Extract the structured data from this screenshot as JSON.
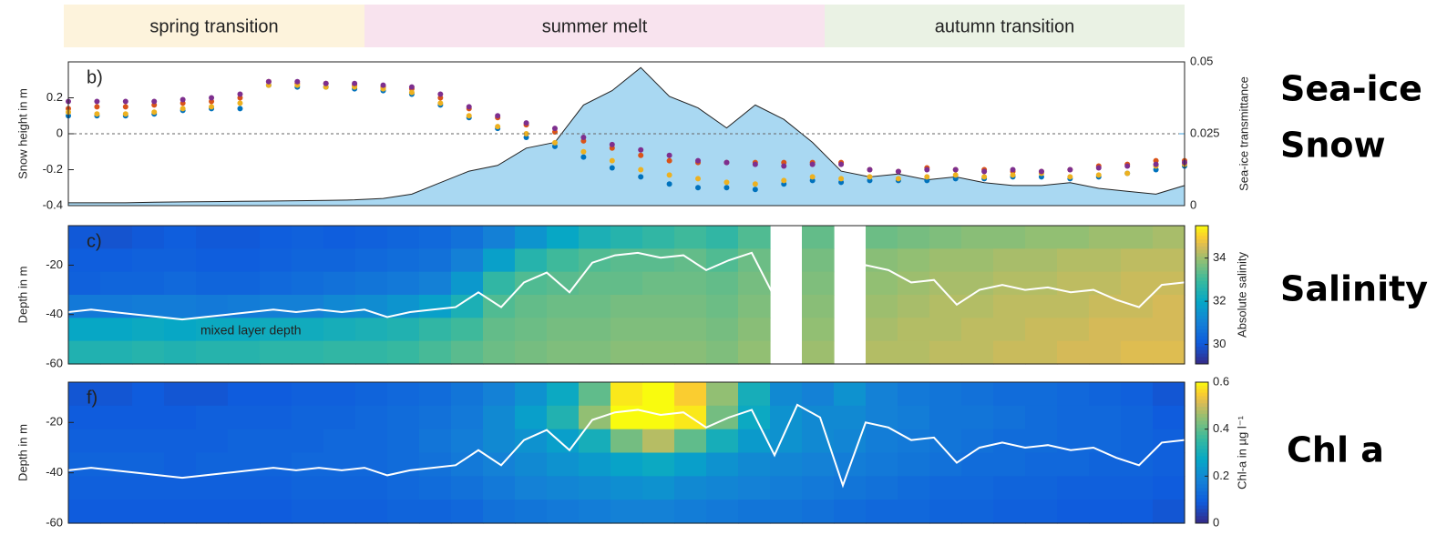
{
  "phases": [
    {
      "label": "spring transition",
      "color": "#fdf3dc"
    },
    {
      "label": "summer melt",
      "color": "#f8e3ee"
    },
    {
      "label": "autumn transition",
      "color": "#eaf2e4"
    }
  ],
  "chart_data": [
    {
      "type": "scatter",
      "panel": "b)",
      "ylabel": "Snow height in m",
      "y2label": "Sea-ice transmittance",
      "y2color": "#3fa0dc",
      "ylim": [
        -0.4,
        0.4
      ],
      "yticks": [
        -0.4,
        -0.2,
        0,
        0.2
      ],
      "hline": 0,
      "y2lim": [
        0,
        0.05
      ],
      "y2ticks": [
        0,
        0.025,
        0.05
      ],
      "side_label": [
        "Sea-ice",
        "Snow"
      ],
      "series": [
        {
          "type": "area",
          "axis": "y2",
          "color": "#a9d8f2",
          "line_color": "#222",
          "values": [
            0.001,
            0.001,
            0.001,
            0.0012,
            0.0013,
            0.0014,
            0.0015,
            0.0016,
            0.0017,
            0.0018,
            0.002,
            0.0025,
            0.004,
            0.008,
            0.012,
            0.014,
            0.02,
            0.022,
            0.035,
            0.04,
            0.048,
            0.038,
            0.034,
            0.027,
            0.035,
            0.03,
            0.022,
            0.012,
            0.01,
            0.011,
            0.009,
            0.01,
            0.008,
            0.007,
            0.007,
            0.008,
            0.006,
            0.005,
            0.004,
            0.007
          ]
        },
        {
          "color": "#d95319",
          "values": [
            0.14,
            0.15,
            0.15,
            0.16,
            0.17,
            0.18,
            0.2,
            0.29,
            0.28,
            0.28,
            0.27,
            0.26,
            0.25,
            0.2,
            0.14,
            0.09,
            0.05,
            0.01,
            -0.04,
            -0.08,
            -0.12,
            -0.15,
            -0.16,
            -0.16,
            -0.16,
            -0.16,
            -0.16,
            -0.16,
            -0.2,
            -0.21,
            -0.19,
            -0.2,
            -0.2,
            -0.21,
            -0.21,
            -0.2,
            -0.18,
            -0.17,
            -0.15,
            -0.15
          ]
        },
        {
          "color": "#0072bd",
          "values": [
            0.1,
            0.1,
            0.1,
            0.11,
            0.13,
            0.14,
            0.14,
            0.27,
            0.26,
            0.26,
            0.25,
            0.24,
            0.22,
            0.16,
            0.09,
            0.03,
            -0.02,
            -0.07,
            -0.13,
            -0.19,
            -0.24,
            -0.28,
            -0.3,
            -0.3,
            -0.31,
            -0.28,
            -0.26,
            -0.27,
            -0.26,
            -0.26,
            -0.26,
            -0.25,
            -0.25,
            -0.24,
            -0.24,
            -0.25,
            -0.24,
            -0.22,
            -0.2,
            -0.18
          ]
        },
        {
          "color": "#edb120",
          "values": [
            0.12,
            0.11,
            0.11,
            0.12,
            0.14,
            0.15,
            0.17,
            0.27,
            0.27,
            0.26,
            0.26,
            0.25,
            0.23,
            0.17,
            0.1,
            0.04,
            0.0,
            -0.05,
            -0.1,
            -0.15,
            -0.2,
            -0.23,
            -0.25,
            -0.27,
            -0.28,
            -0.26,
            -0.24,
            -0.25,
            -0.24,
            -0.25,
            -0.24,
            -0.23,
            -0.24,
            -0.23,
            -0.22,
            -0.24,
            -0.23,
            -0.22,
            -0.18,
            -0.17
          ]
        },
        {
          "color": "#7e2f8e",
          "values": [
            0.18,
            0.18,
            0.18,
            0.18,
            0.19,
            0.2,
            0.22,
            0.29,
            0.29,
            0.28,
            0.28,
            0.27,
            0.26,
            0.22,
            0.15,
            0.1,
            0.06,
            0.03,
            -0.02,
            -0.06,
            -0.09,
            -0.12,
            -0.15,
            -0.16,
            -0.17,
            -0.18,
            -0.17,
            -0.17,
            -0.2,
            -0.21,
            -0.2,
            -0.2,
            -0.21,
            -0.2,
            -0.21,
            -0.2,
            -0.19,
            -0.18,
            -0.17,
            -0.16
          ]
        }
      ]
    },
    {
      "type": "heatmap",
      "panel": "c)",
      "ylabel": "Depth in m",
      "clabel": "Absolute salinity",
      "side_label": "Salinity",
      "ylim": [
        -60,
        -4
      ],
      "yticks": [
        -60,
        -40,
        -20
      ],
      "clim": [
        29.1,
        35.5
      ],
      "cticks": [
        30,
        32,
        34
      ],
      "annotation": "mixed layer depth",
      "z": [
        [
          30.0,
          29.9,
          30.0,
          30.1,
          30.0,
          30.0,
          30.1,
          30.2,
          30.1,
          30.2,
          30.3,
          30.4,
          30.6,
          31.0,
          31.5,
          32.0,
          32.4,
          32.6,
          32.8,
          33.0,
          32.8,
          33.2,
          null,
          33.4,
          null,
          33.5,
          33.6,
          33.7,
          33.8,
          33.8,
          33.9,
          33.9,
          34.0,
          34.0,
          34.1
        ],
        [
          30.1,
          30.1,
          30.2,
          30.2,
          30.1,
          30.1,
          30.2,
          30.3,
          30.3,
          30.4,
          30.5,
          30.6,
          31.0,
          31.8,
          32.6,
          33.0,
          33.2,
          33.3,
          33.3,
          33.4,
          33.2,
          33.5,
          null,
          33.6,
          null,
          33.8,
          33.9,
          34.0,
          34.0,
          34.1,
          34.1,
          34.2,
          34.2,
          34.3,
          34.3
        ],
        [
          30.2,
          30.3,
          30.3,
          30.4,
          30.3,
          30.3,
          30.4,
          30.5,
          30.6,
          30.7,
          30.8,
          31.0,
          31.6,
          32.8,
          33.2,
          33.3,
          33.4,
          33.4,
          33.5,
          33.5,
          33.4,
          33.6,
          null,
          33.7,
          null,
          33.9,
          34.0,
          34.1,
          34.1,
          34.2,
          34.2,
          34.3,
          34.3,
          34.4,
          34.4
        ],
        [
          30.8,
          30.8,
          30.9,
          30.9,
          30.8,
          30.9,
          31.0,
          31.0,
          31.2,
          31.3,
          31.5,
          31.8,
          32.4,
          33.2,
          33.4,
          33.5,
          33.5,
          33.6,
          33.6,
          33.6,
          33.5,
          33.7,
          null,
          33.8,
          null,
          34.0,
          34.1,
          34.2,
          34.2,
          34.3,
          34.3,
          34.3,
          34.4,
          34.4,
          34.5
        ],
        [
          32.0,
          32.0,
          32.1,
          32.0,
          32.1,
          32.1,
          32.2,
          32.2,
          32.3,
          32.4,
          32.5,
          32.8,
          33.0,
          33.4,
          33.5,
          33.6,
          33.6,
          33.7,
          33.7,
          33.7,
          33.6,
          33.8,
          null,
          33.9,
          null,
          34.1,
          34.2,
          34.2,
          34.3,
          34.3,
          34.4,
          34.4,
          34.5,
          34.5,
          34.5
        ],
        [
          32.5,
          32.5,
          32.6,
          32.5,
          32.6,
          32.6,
          32.7,
          32.7,
          32.8,
          32.8,
          32.9,
          33.1,
          33.3,
          33.5,
          33.6,
          33.7,
          33.7,
          33.8,
          33.8,
          33.8,
          33.7,
          33.9,
          null,
          34.0,
          null,
          34.2,
          34.2,
          34.3,
          34.3,
          34.4,
          34.4,
          34.5,
          34.5,
          34.6,
          34.6
        ]
      ],
      "line": {
        "color": "#ffffff",
        "values": [
          -39,
          -38,
          -39,
          -40,
          -41,
          -42,
          -41,
          -40,
          -39,
          -38,
          -39,
          -38,
          -39,
          -38,
          -41,
          -39,
          -38,
          -37,
          -31,
          -37,
          -27,
          -23,
          -31,
          -19,
          -16,
          -15,
          -17,
          -16,
          -22,
          -18,
          -15,
          -33,
          -13,
          null,
          -35,
          -20,
          -22,
          -27,
          -26,
          -36,
          -30,
          -28,
          -30,
          -29,
          -31,
          -30,
          -34,
          -37,
          -28,
          -27
        ]
      }
    },
    {
      "type": "heatmap",
      "panel": "f)",
      "ylabel": "Depth in m",
      "clabel": "Chl-a in µg l⁻¹",
      "side_label": "Chl a",
      "ylim": [
        -60,
        -4
      ],
      "yticks": [
        -60,
        -40,
        -20
      ],
      "clim": [
        0,
        0.6
      ],
      "cticks": [
        0,
        0.2,
        0.4,
        0.6
      ],
      "z": [
        [
          0.08,
          0.08,
          0.09,
          0.08,
          0.08,
          0.09,
          0.09,
          0.1,
          0.1,
          0.11,
          0.12,
          0.13,
          0.15,
          0.18,
          0.22,
          0.28,
          0.4,
          0.58,
          0.6,
          0.55,
          0.45,
          0.3,
          0.2,
          0.18,
          0.22,
          0.18,
          0.16,
          0.15,
          0.14,
          0.13,
          0.13,
          0.12,
          0.11,
          0.1,
          0.08
        ],
        [
          0.09,
          0.09,
          0.09,
          0.09,
          0.1,
          0.1,
          0.1,
          0.11,
          0.11,
          0.12,
          0.13,
          0.14,
          0.16,
          0.2,
          0.25,
          0.32,
          0.45,
          0.6,
          0.6,
          0.58,
          0.42,
          0.28,
          0.22,
          0.2,
          0.2,
          0.18,
          0.17,
          0.15,
          0.15,
          0.14,
          0.13,
          0.12,
          0.12,
          0.11,
          0.09
        ],
        [
          0.1,
          0.1,
          0.1,
          0.1,
          0.1,
          0.11,
          0.11,
          0.11,
          0.12,
          0.12,
          0.13,
          0.15,
          0.17,
          0.2,
          0.22,
          0.25,
          0.3,
          0.42,
          0.48,
          0.4,
          0.3,
          0.24,
          0.22,
          0.2,
          0.19,
          0.17,
          0.16,
          0.15,
          0.14,
          0.13,
          0.13,
          0.12,
          0.12,
          0.11,
          0.1
        ],
        [
          0.11,
          0.11,
          0.11,
          0.1,
          0.11,
          0.11,
          0.11,
          0.12,
          0.12,
          0.12,
          0.13,
          0.14,
          0.16,
          0.18,
          0.2,
          0.22,
          0.24,
          0.26,
          0.28,
          0.25,
          0.22,
          0.2,
          0.19,
          0.18,
          0.17,
          0.16,
          0.15,
          0.14,
          0.13,
          0.13,
          0.12,
          0.12,
          0.11,
          0.11,
          0.1
        ],
        [
          0.1,
          0.1,
          0.1,
          0.1,
          0.1,
          0.1,
          0.1,
          0.11,
          0.11,
          0.11,
          0.12,
          0.13,
          0.14,
          0.16,
          0.18,
          0.19,
          0.2,
          0.21,
          0.22,
          0.2,
          0.19,
          0.18,
          0.17,
          0.16,
          0.15,
          0.14,
          0.13,
          0.12,
          0.12,
          0.11,
          0.11,
          0.1,
          0.1,
          0.1,
          0.09
        ],
        [
          0.09,
          0.09,
          0.09,
          0.09,
          0.09,
          0.09,
          0.09,
          0.1,
          0.1,
          0.1,
          0.11,
          0.11,
          0.12,
          0.14,
          0.15,
          0.16,
          0.17,
          0.18,
          0.18,
          0.17,
          0.16,
          0.15,
          0.15,
          0.14,
          0.13,
          0.12,
          0.12,
          0.11,
          0.11,
          0.1,
          0.1,
          0.09,
          0.09,
          0.09,
          0.08
        ]
      ],
      "line": {
        "color": "#ffffff",
        "values": [
          -39,
          -38,
          -39,
          -40,
          -41,
          -42,
          -41,
          -40,
          -39,
          -38,
          -39,
          -38,
          -39,
          -38,
          -41,
          -39,
          -38,
          -37,
          -31,
          -37,
          -27,
          -23,
          -31,
          -19,
          -16,
          -15,
          -17,
          -16,
          -22,
          -18,
          -15,
          -33,
          -13,
          -18,
          -45,
          -20,
          -22,
          -27,
          -26,
          -36,
          -30,
          -28,
          -30,
          -29,
          -31,
          -30,
          -34,
          -37,
          -28,
          -27
        ]
      }
    }
  ]
}
